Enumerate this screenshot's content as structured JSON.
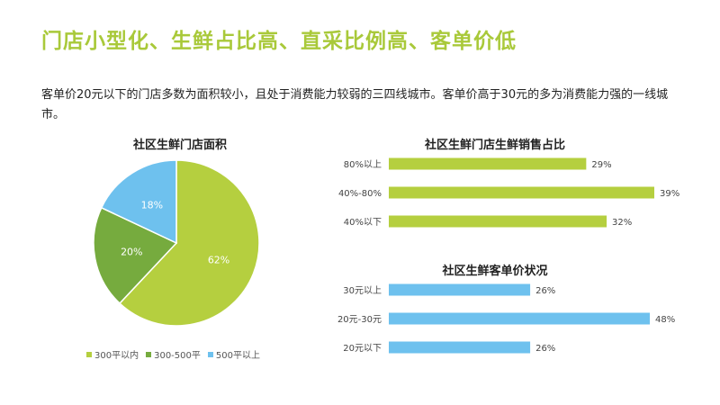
{
  "page": {
    "title": "门店小型化、生鲜占比高、直采比例高、客单价低",
    "description": "客单价20元以下的门店多数为面积较小，且处于消费能力较弱的三四线城市。客单价高于30元的多为消费能力强的一线城市。"
  },
  "colors": {
    "title_green": "#a9c93a",
    "green_light": "#b5cf3f",
    "green_dark": "#76ab3e",
    "blue": "#6ec1ee"
  },
  "chart_data": [
    {
      "type": "pie",
      "title": "社区生鲜门店面积",
      "categories": [
        "300平以内",
        "300-500平",
        "500平以上"
      ],
      "values": [
        62,
        20,
        18
      ],
      "value_labels": [
        "62%",
        "20%",
        "18%"
      ],
      "colors": [
        "#b5cf3f",
        "#76ab3e",
        "#6ec1ee"
      ],
      "legend": "bottom"
    },
    {
      "type": "bar",
      "orientation": "horizontal",
      "title": "社区生鲜门店生鲜销售占比",
      "categories": [
        "80%以上",
        "40%-80%",
        "40%以下"
      ],
      "values": [
        29,
        39,
        32
      ],
      "value_labels": [
        "29%",
        "39%",
        "32%"
      ],
      "color": "#b5cf3f"
    },
    {
      "type": "bar",
      "orientation": "horizontal",
      "title": "社区生鲜客单价状况",
      "categories": [
        "30元以上",
        "20元-30元",
        "20元以下"
      ],
      "values": [
        26,
        48,
        26
      ],
      "value_labels": [
        "26%",
        "48%",
        "26%"
      ],
      "color": "#6ec1ee"
    }
  ]
}
